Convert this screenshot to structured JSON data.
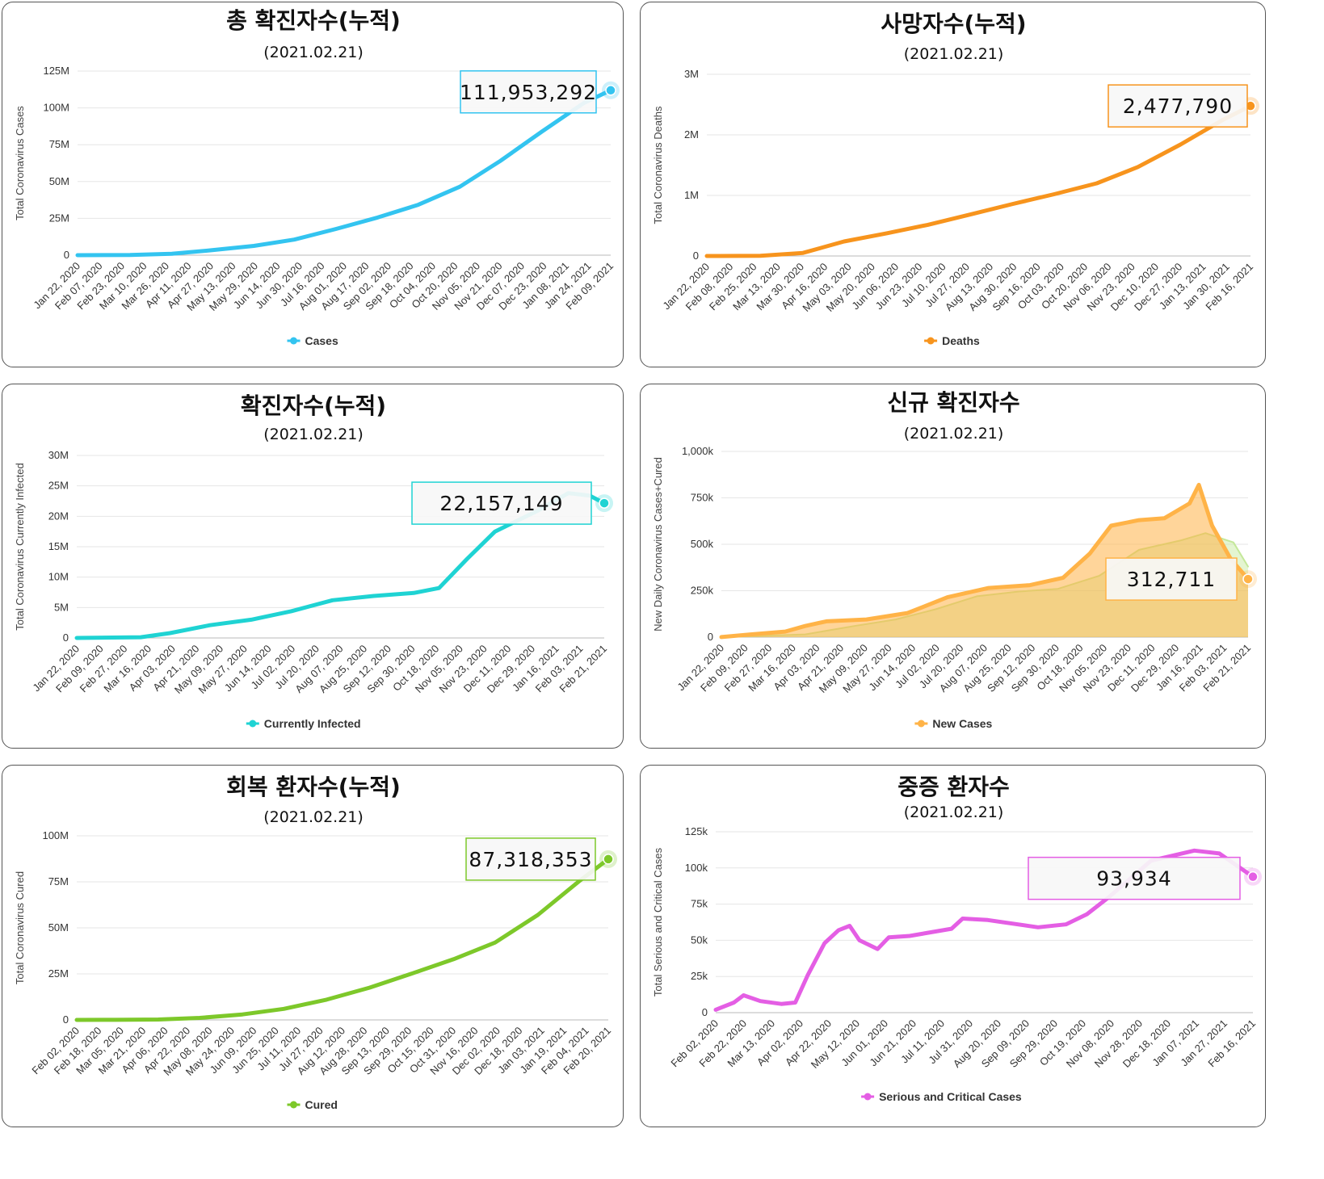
{
  "chart_data": [
    {
      "id": "total",
      "type": "line",
      "title": "총 확진자수(누적)",
      "subtitle": "(2021.02.21)",
      "ylabel": "Total Coronavirus Cases",
      "ylim": [
        0,
        125000000
      ],
      "y_ticks": [
        0,
        25000000,
        50000000,
        75000000,
        100000000,
        125000000
      ],
      "y_tick_labels": [
        "0",
        "25M",
        "50M",
        "75M",
        "100M",
        "125M"
      ],
      "x_range": [
        "2020-01-22",
        "2021-02-21"
      ],
      "x_tick_labels": [
        "Jan 22, 2020",
        "Feb 07, 2020",
        "Feb 23, 2020",
        "Mar 10, 2020",
        "Mar 26, 2020",
        "Apr 11, 2020",
        "Apr 27, 2020",
        "May 13, 2020",
        "May 29, 2020",
        "Jun 14, 2020",
        "Jun 30, 2020",
        "Jul 16, 2020",
        "Aug 01, 2020",
        "Aug 17, 2020",
        "Sep 02, 2020",
        "Sep 18, 2020",
        "Oct 04, 2020",
        "Oct 20, 2020",
        "Nov 05, 2020",
        "Nov 21, 2020",
        "Dec 07, 2020",
        "Dec 23, 2020",
        "Jan 08, 2021",
        "Jan 24, 2021",
        "Feb 09, 2021"
      ],
      "grid": true,
      "legend_placement": "bottom-center",
      "series": [
        {
          "name": "Cases",
          "color": "#33c4f0",
          "x": [
            "2020-01-22",
            "2020-03-01",
            "2020-04-01",
            "2020-05-01",
            "2020-06-01",
            "2020-07-01",
            "2020-08-01",
            "2020-09-01",
            "2020-10-01",
            "2020-11-01",
            "2020-12-01",
            "2021-01-01",
            "2021-02-01",
            "2021-02-21"
          ],
          "y": [
            600,
            88000,
            930000,
            3400000,
            6300000,
            10600000,
            17800000,
            25600000,
            34200000,
            46500000,
            64000000,
            84000000,
            103300000,
            111953292
          ]
        }
      ],
      "tooltip": {
        "value": "111,953,292"
      }
    },
    {
      "id": "deaths",
      "type": "line",
      "title": "사망자수(누적)",
      "subtitle": "(2021.02.21)",
      "ylabel": "Total Coronavirus Deaths",
      "ylim": [
        0,
        3000000
      ],
      "y_ticks": [
        0,
        1000000,
        2000000,
        3000000
      ],
      "y_tick_labels": [
        "0",
        "1M",
        "2M",
        "3M"
      ],
      "x_range": [
        "2020-01-22",
        "2021-02-21"
      ],
      "x_tick_labels": [
        "Jan 22, 2020",
        "Feb 08, 2020",
        "Feb 25, 2020",
        "Mar 13, 2020",
        "Mar 30, 2020",
        "Apr 16, 2020",
        "May 03, 2020",
        "May 20, 2020",
        "Jun 06, 2020",
        "Jun 23, 2020",
        "Jul 10, 2020",
        "Jul 27, 2020",
        "Aug 13, 2020",
        "Aug 30, 2020",
        "Sep 16, 2020",
        "Oct 03, 2020",
        "Oct 20, 2020",
        "Nov 06, 2020",
        "Nov 23, 2020",
        "Dec 10, 2020",
        "Dec 27, 2020",
        "Jan 13, 2021",
        "Jan 30, 2021",
        "Feb 16, 2021"
      ],
      "grid": true,
      "legend_placement": "bottom-center",
      "series": [
        {
          "name": "Deaths",
          "color": "#f7941d",
          "x": [
            "2020-01-22",
            "2020-03-01",
            "2020-04-01",
            "2020-05-01",
            "2020-06-01",
            "2020-07-01",
            "2020-08-01",
            "2020-09-01",
            "2020-10-01",
            "2020-11-01",
            "2020-12-01",
            "2021-01-01",
            "2021-02-01",
            "2021-02-21"
          ],
          "y": [
            17,
            3000,
            51000,
            240000,
            375000,
            515000,
            685000,
            860000,
            1020000,
            1200000,
            1470000,
            1840000,
            2250000,
            2477790
          ]
        }
      ],
      "tooltip": {
        "value": "2,477,790"
      }
    },
    {
      "id": "infected",
      "type": "line",
      "title": "확진자수(누적)",
      "subtitle": "(2021.02.21)",
      "ylabel": "Total Coronavirus Currently Infected",
      "ylim": [
        0,
        30000000
      ],
      "y_ticks": [
        0,
        5000000,
        10000000,
        15000000,
        20000000,
        25000000,
        30000000
      ],
      "y_tick_labels": [
        "0",
        "5M",
        "10M",
        "15M",
        "20M",
        "25M",
        "30M"
      ],
      "x_range": [
        "2020-01-22",
        "2021-02-21"
      ],
      "x_tick_labels": [
        "Jan 22, 2020",
        "Feb 09, 2020",
        "Feb 27, 2020",
        "Mar 16, 2020",
        "Apr 03, 2020",
        "Apr 21, 2020",
        "May 09, 2020",
        "May 27, 2020",
        "Jun 14, 2020",
        "Jul 02, 2020",
        "Jul 20, 2020",
        "Aug 07, 2020",
        "Aug 25, 2020",
        "Sep 12, 2020",
        "Sep 30, 2020",
        "Oct 18, 2020",
        "Nov 05, 2020",
        "Nov 23, 2020",
        "Dec 11, 2020",
        "Dec 29, 2020",
        "Jan 16, 2021",
        "Feb 03, 2021",
        "Feb 21, 2021"
      ],
      "grid": true,
      "legend_placement": "bottom-center",
      "series": [
        {
          "name": "Currently Infected",
          "color": "#1fd3d3",
          "x": [
            "2020-01-22",
            "2020-03-10",
            "2020-04-01",
            "2020-05-01",
            "2020-06-01",
            "2020-07-01",
            "2020-08-01",
            "2020-09-01",
            "2020-10-01",
            "2020-10-20",
            "2020-11-10",
            "2020-12-01",
            "2021-01-01",
            "2021-01-25",
            "2021-02-10",
            "2021-02-21"
          ],
          "y": [
            600,
            120000,
            800000,
            2100000,
            3000000,
            4400000,
            6200000,
            6900000,
            7400000,
            8200000,
            13000000,
            17500000,
            20800000,
            23800000,
            23400000,
            22157149
          ]
        }
      ],
      "tooltip": {
        "value": "22,157,149"
      }
    },
    {
      "id": "new",
      "type": "area",
      "title": "신규 확진자수",
      "subtitle": "(2021.02.21)",
      "ylabel": "New Daily Coronavirus Cases+Cured",
      "ylim": [
        0,
        1000000
      ],
      "y_ticks": [
        0,
        250000,
        500000,
        750000,
        1000000
      ],
      "y_tick_labels": [
        "0",
        "250k",
        "500k",
        "750k",
        "1,000k"
      ],
      "x_range": [
        "2020-01-22",
        "2021-02-21"
      ],
      "x_tick_labels": [
        "Jan 22, 2020",
        "Feb 09, 2020",
        "Feb 27, 2020",
        "Mar 16, 2020",
        "Apr 03, 2020",
        "Apr 21, 2020",
        "May 09, 2020",
        "May 27, 2020",
        "Jun 14, 2020",
        "Jul 02, 2020",
        "Jul 20, 2020",
        "Aug 07, 2020",
        "Aug 25, 2020",
        "Sep 12, 2020",
        "Sep 30, 2020",
        "Oct 18, 2020",
        "Nov 05, 2020",
        "Nov 23, 2020",
        "Dec 11, 2020",
        "Dec 29, 2020",
        "Jan 16, 2021",
        "Feb 03, 2021",
        "Feb 21, 2021"
      ],
      "grid": true,
      "legend_placement": "bottom-center",
      "series": [
        {
          "name": "New Cases",
          "color": "#ffb347",
          "x": [
            "2020-01-22",
            "2020-02-13",
            "2020-03-10",
            "2020-03-25",
            "2020-04-10",
            "2020-05-10",
            "2020-06-10",
            "2020-07-10",
            "2020-08-10",
            "2020-09-10",
            "2020-10-05",
            "2020-10-25",
            "2020-11-10",
            "2020-12-01",
            "2020-12-20",
            "2021-01-08",
            "2021-01-15",
            "2021-01-25",
            "2021-02-08",
            "2021-02-21"
          ],
          "y": [
            600,
            15000,
            30000,
            60000,
            85000,
            95000,
            130000,
            215000,
            265000,
            280000,
            320000,
            450000,
            600000,
            630000,
            640000,
            720000,
            820000,
            600000,
            420000,
            312711
          ]
        },
        {
          "color": "#c4e89a",
          "x": [
            "2020-01-22",
            "2020-03-25",
            "2020-05-01",
            "2020-06-01",
            "2020-07-01",
            "2020-08-01",
            "2020-09-01",
            "2020-10-01",
            "2020-11-01",
            "2020-12-01",
            "2021-01-01",
            "2021-01-20",
            "2021-02-10",
            "2021-02-21"
          ],
          "y": [
            0,
            15000,
            60000,
            95000,
            150000,
            220000,
            245000,
            260000,
            330000,
            470000,
            520000,
            560000,
            510000,
            380000
          ]
        }
      ],
      "tooltip": {
        "value": "312,711"
      }
    },
    {
      "id": "cured",
      "type": "line",
      "title": "회복 환자수(누적)",
      "subtitle": "(2021.02.21)",
      "ylabel": "Total Coronavirus Cured",
      "ylim": [
        0,
        100000000
      ],
      "y_ticks": [
        0,
        25000000,
        50000000,
        75000000,
        100000000
      ],
      "y_tick_labels": [
        "0",
        "25M",
        "50M",
        "75M",
        "100M"
      ],
      "x_range": [
        "2020-02-02",
        "2021-02-21"
      ],
      "x_tick_labels": [
        "Feb 02, 2020",
        "Feb 18, 2020",
        "Mar 05, 2020",
        "Mar 21, 2020",
        "Apr 06, 2020",
        "Apr 22, 2020",
        "May 08, 2020",
        "May 24, 2020",
        "Jun 09, 2020",
        "Jun 25, 2020",
        "Jul 11, 2020",
        "Jul 27, 2020",
        "Aug 12, 2020",
        "Aug 28, 2020",
        "Sep 13, 2020",
        "Sep 29, 2020",
        "Oct 15, 2020",
        "Oct 31, 2020",
        "Nov 16, 2020",
        "Dec 02, 2020",
        "Dec 18, 2020",
        "Jan 03, 2021",
        "Jan 19, 2021",
        "Feb 04, 2021",
        "Feb 20, 2021"
      ],
      "grid": true,
      "legend_placement": "bottom-center",
      "series": [
        {
          "name": "Cured",
          "color": "#7dc82a",
          "x": [
            "2020-02-02",
            "2020-03-01",
            "2020-04-01",
            "2020-05-01",
            "2020-06-01",
            "2020-07-01",
            "2020-08-01",
            "2020-09-01",
            "2020-10-01",
            "2020-11-01",
            "2020-12-01",
            "2021-01-01",
            "2021-02-01",
            "2021-02-21"
          ],
          "y": [
            300,
            40000,
            200000,
            1100000,
            3000000,
            6000000,
            11000000,
            17500000,
            25000000,
            33000000,
            42000000,
            57000000,
            76000000,
            87318353
          ]
        }
      ],
      "tooltip": {
        "value": "87,318,353"
      }
    },
    {
      "id": "serious",
      "type": "line",
      "title": "중증 환자수",
      "subtitle": "(2021.02.21)",
      "ylabel": "Total Serious and Critical Cases",
      "ylim": [
        0,
        125000
      ],
      "y_ticks": [
        0,
        25000,
        50000,
        75000,
        100000,
        125000
      ],
      "y_tick_labels": [
        "0",
        "25k",
        "50k",
        "75k",
        "100k",
        "125k"
      ],
      "x_range": [
        "2020-02-02",
        "2021-02-21"
      ],
      "x_tick_labels": [
        "Feb 02, 2020",
        "Feb 22, 2020",
        "Mar 13, 2020",
        "Apr 02, 2020",
        "Apr 22, 2020",
        "May 12, 2020",
        "Jun 01, 2020",
        "Jun 21, 2020",
        "Jul 11, 2020",
        "Jul 31, 2020",
        "Aug 20, 2020",
        "Sep 09, 2020",
        "Sep 29, 2020",
        "Oct 19, 2020",
        "Nov 08, 2020",
        "Nov 28, 2020",
        "Dec 18, 2020",
        "Jan 07, 2021",
        "Jan 27, 2021",
        "Feb 16, 2021"
      ],
      "grid": true,
      "legend_placement": "bottom-center",
      "series": [
        {
          "name": "Serious and Critical Cases",
          "color": "#e45ee4",
          "x": [
            "2020-02-02",
            "2020-02-15",
            "2020-02-22",
            "2020-03-05",
            "2020-03-20",
            "2020-03-30",
            "2020-04-08",
            "2020-04-20",
            "2020-04-30",
            "2020-05-08",
            "2020-05-15",
            "2020-05-28",
            "2020-06-05",
            "2020-06-20",
            "2020-07-20",
            "2020-07-28",
            "2020-08-15",
            "2020-09-20",
            "2020-10-10",
            "2020-10-25",
            "2020-11-10",
            "2020-12-10",
            "2021-01-10",
            "2021-01-28",
            "2021-02-21"
          ],
          "y": [
            2000,
            7000,
            12000,
            8000,
            6000,
            7000,
            26000,
            48000,
            57000,
            60000,
            50000,
            44000,
            52000,
            53000,
            58000,
            65000,
            64000,
            59000,
            61000,
            68000,
            80000,
            105000,
            112000,
            110000,
            93934
          ]
        }
      ],
      "tooltip": {
        "value": "93,934"
      }
    }
  ]
}
